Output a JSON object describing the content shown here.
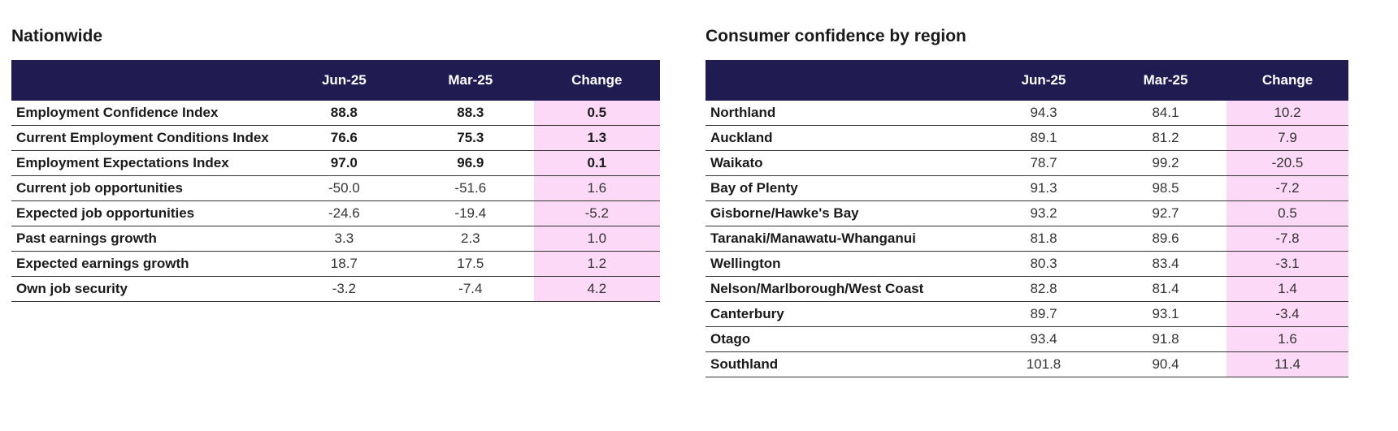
{
  "nationwide": {
    "title": "Nationwide",
    "columns": [
      "",
      "Jun-25",
      "Mar-25",
      "Change"
    ],
    "rows": [
      {
        "label": "Employment Confidence Index",
        "jun": "88.8",
        "mar": "88.3",
        "change": "0.5",
        "bold": true
      },
      {
        "label": "Current Employment Conditions Index",
        "jun": "76.6",
        "mar": "75.3",
        "change": "1.3",
        "bold": true
      },
      {
        "label": "Employment Expectations Index",
        "jun": "97.0",
        "mar": "96.9",
        "change": "0.1",
        "bold": true
      },
      {
        "label": "Current job opportunities",
        "jun": "-50.0",
        "mar": "-51.6",
        "change": "1.6",
        "bold": false
      },
      {
        "label": "Expected job opportunities",
        "jun": "-24.6",
        "mar": "-19.4",
        "change": "-5.2",
        "bold": false
      },
      {
        "label": "Past earnings growth",
        "jun": "3.3",
        "mar": "2.3",
        "change": "1.0",
        "bold": false
      },
      {
        "label": "Expected earnings growth",
        "jun": "18.7",
        "mar": "17.5",
        "change": "1.2",
        "bold": false
      },
      {
        "label": "Own job security",
        "jun": "-3.2",
        "mar": "-7.4",
        "change": "4.2",
        "bold": false
      }
    ]
  },
  "regional": {
    "title": "Consumer confidence by region",
    "columns": [
      "",
      "Jun-25",
      "Mar-25",
      "Change"
    ],
    "rows": [
      {
        "label": "Northland",
        "jun": "94.3",
        "mar": "84.1",
        "change": "10.2"
      },
      {
        "label": "Auckland",
        "jun": "89.1",
        "mar": "81.2",
        "change": "7.9"
      },
      {
        "label": "Waikato",
        "jun": "78.7",
        "mar": "99.2",
        "change": "-20.5"
      },
      {
        "label": "Bay of Plenty",
        "jun": "91.3",
        "mar": "98.5",
        "change": "-7.2"
      },
      {
        "label": "Gisborne/Hawke's Bay",
        "jun": "93.2",
        "mar": "92.7",
        "change": "0.5"
      },
      {
        "label": "Taranaki/Manawatu-Whanganui",
        "jun": "81.8",
        "mar": "89.6",
        "change": "-7.8"
      },
      {
        "label": "Wellington",
        "jun": "80.3",
        "mar": "83.4",
        "change": "-3.1"
      },
      {
        "label": "Nelson/Marlborough/West Coast",
        "jun": "82.8",
        "mar": "81.4",
        "change": "1.4"
      },
      {
        "label": "Canterbury",
        "jun": "89.7",
        "mar": "93.1",
        "change": "-3.4"
      },
      {
        "label": "Otago",
        "jun": "93.4",
        "mar": "91.8",
        "change": "1.6"
      },
      {
        "label": "Southland",
        "jun": "101.8",
        "mar": "90.4",
        "change": "11.4"
      }
    ]
  },
  "colors": {
    "header_bg": "#201c52",
    "change_bg": "#fcd9f6"
  }
}
